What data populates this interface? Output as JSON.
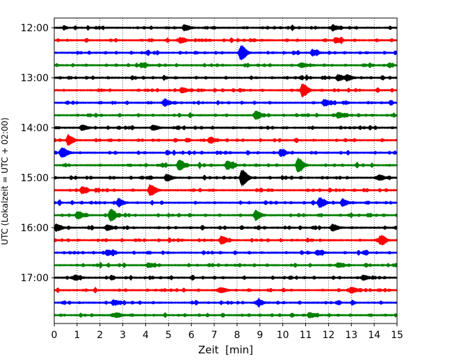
{
  "chart_data": {
    "type": "line",
    "title": "",
    "xlabel": "Zeit  [min]",
    "ylabel": "UTC (Lokalzeit = UTC + 02:00)",
    "xlim": [
      0,
      15
    ],
    "x_ticks": [
      0,
      1,
      2,
      3,
      4,
      5,
      6,
      7,
      8,
      9,
      10,
      11,
      12,
      13,
      14,
      15
    ],
    "y_tick_labels": [
      "12:00",
      "13:00",
      "14:00",
      "15:00",
      "16:00",
      "17:00"
    ],
    "y_tick_traces": [
      0,
      4,
      8,
      12,
      16,
      20
    ],
    "vertical_grid": true,
    "grid_style": "dotted",
    "trace_interval_min": 15,
    "start_time": "12:00",
    "colors_cycle": [
      "#000000",
      "#ff0000",
      "#0000ff",
      "#008000"
    ],
    "traces": [
      {
        "time": "12:00",
        "color": "#000000",
        "amplitude": 1.0,
        "events": [
          [
            5.7,
            1.6
          ],
          [
            12.2,
            1.3
          ]
        ]
      },
      {
        "time": "12:15",
        "color": "#ff0000",
        "amplitude": 1.0,
        "events": [
          [
            5.5,
            1.3
          ],
          [
            12.3,
            1.5
          ]
        ]
      },
      {
        "time": "12:30",
        "color": "#0000ff",
        "amplitude": 1.0,
        "events": [
          [
            8.15,
            4.5
          ],
          [
            11.3,
            1.5
          ]
        ]
      },
      {
        "time": "12:45",
        "color": "#008000",
        "amplitude": 1.0,
        "events": [
          [
            3.8,
            1.3
          ],
          [
            10.8,
            1.3
          ]
        ]
      },
      {
        "time": "13:00",
        "color": "#000000",
        "amplitude": 1.0,
        "events": [
          [
            12.4,
            1.8
          ],
          [
            12.8,
            1.6
          ]
        ]
      },
      {
        "time": "13:15",
        "color": "#ff0000",
        "amplitude": 1.0,
        "events": [
          [
            10.85,
            4.2
          ],
          [
            5.6,
            1.3
          ]
        ]
      },
      {
        "time": "13:30",
        "color": "#0000ff",
        "amplitude": 1.0,
        "events": [
          [
            4.8,
            1.7
          ],
          [
            11.8,
            2.0
          ]
        ]
      },
      {
        "time": "13:45",
        "color": "#008000",
        "amplitude": 1.0,
        "events": [
          [
            8.8,
            2.6
          ],
          [
            12.4,
            1.6
          ]
        ]
      },
      {
        "time": "14:00",
        "color": "#000000",
        "amplitude": 1.0,
        "events": [
          [
            1.2,
            1.5
          ],
          [
            4.3,
            1.4
          ]
        ]
      },
      {
        "time": "14:15",
        "color": "#ff0000",
        "amplitude": 1.0,
        "events": [
          [
            0.6,
            2.6
          ],
          [
            6.8,
            1.6
          ]
        ]
      },
      {
        "time": "14:30",
        "color": "#0000ff",
        "amplitude": 1.0,
        "events": [
          [
            0.35,
            2.8
          ],
          [
            9.9,
            2.0
          ]
        ]
      },
      {
        "time": "14:45",
        "color": "#008000",
        "amplitude": 1.0,
        "events": [
          [
            5.45,
            3.2
          ],
          [
            7.55,
            2.5
          ],
          [
            10.65,
            4.5
          ]
        ]
      },
      {
        "time": "15:00",
        "color": "#000000",
        "amplitude": 1.0,
        "events": [
          [
            8.2,
            5.2
          ],
          [
            4.9,
            2.0
          ],
          [
            14.2,
            1.6
          ]
        ]
      },
      {
        "time": "15:15",
        "color": "#ff0000",
        "amplitude": 1.0,
        "events": [
          [
            4.2,
            3.3
          ],
          [
            1.2,
            1.5
          ]
        ]
      },
      {
        "time": "15:30",
        "color": "#0000ff",
        "amplitude": 1.0,
        "events": [
          [
            11.6,
            3.0
          ],
          [
            2.8,
            2.0
          ],
          [
            12.6,
            1.8
          ]
        ]
      },
      {
        "time": "15:45",
        "color": "#008000",
        "amplitude": 1.0,
        "events": [
          [
            2.45,
            3.4
          ],
          [
            1.0,
            2.2
          ],
          [
            8.8,
            2.6
          ]
        ]
      },
      {
        "time": "16:00",
        "color": "#000000",
        "amplitude": 1.0,
        "events": [
          [
            0.1,
            1.8
          ],
          [
            2.3,
            1.5
          ],
          [
            12.2,
            1.6
          ]
        ]
      },
      {
        "time": "16:15",
        "color": "#ff0000",
        "amplitude": 1.0,
        "events": [
          [
            7.3,
            2.4
          ],
          [
            14.25,
            2.5
          ]
        ]
      },
      {
        "time": "16:30",
        "color": "#0000ff",
        "amplitude": 1.0,
        "events": [
          [
            2.3,
            1.6
          ],
          [
            11.5,
            1.4
          ]
        ]
      },
      {
        "time": "16:45",
        "color": "#008000",
        "amplitude": 1.0,
        "events": [
          [
            4.1,
            1.3
          ],
          [
            12.4,
            1.3
          ]
        ]
      },
      {
        "time": "17:00",
        "color": "#000000",
        "amplitude": 1.0,
        "events": [
          [
            0.9,
            1.5
          ],
          [
            13.5,
            1.4
          ]
        ]
      },
      {
        "time": "17:15",
        "color": "#ff0000",
        "amplitude": 1.0,
        "events": [
          [
            7.3,
            1.4
          ],
          [
            13.0,
            1.6
          ]
        ]
      },
      {
        "time": "17:30",
        "color": "#0000ff",
        "amplitude": 1.0,
        "events": [
          [
            2.6,
            1.4
          ],
          [
            8.9,
            1.4
          ]
        ]
      },
      {
        "time": "17:45",
        "color": "#008000",
        "amplitude": 1.0,
        "events": [
          [
            2.7,
            1.4
          ],
          [
            11.2,
            1.3
          ]
        ]
      }
    ]
  }
}
